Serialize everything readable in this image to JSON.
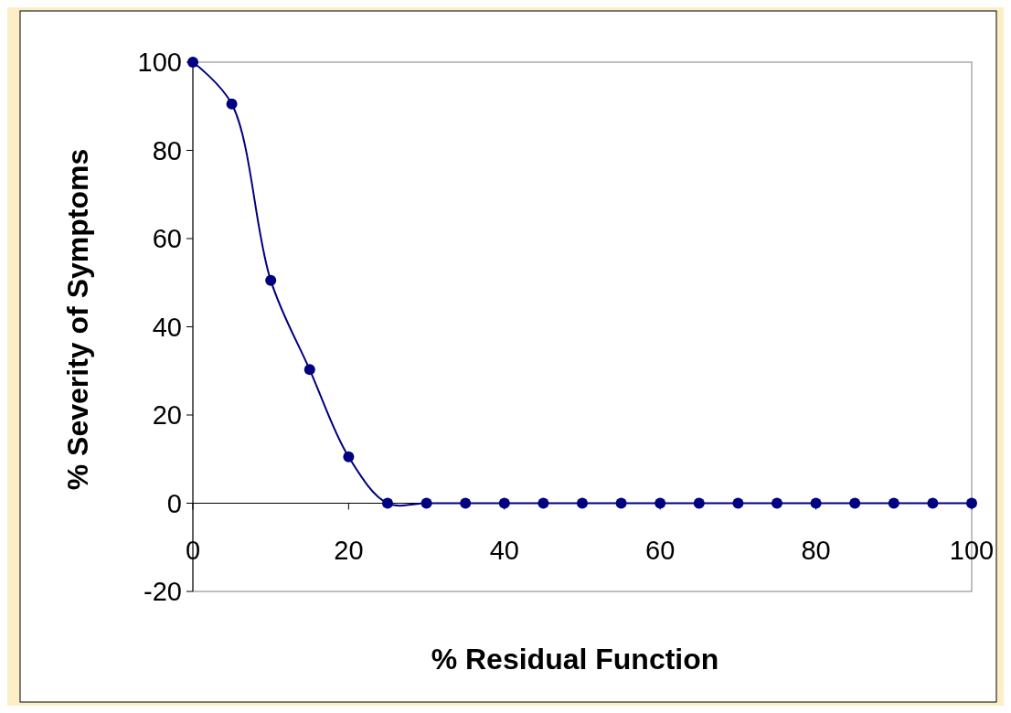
{
  "chart_data": {
    "type": "line",
    "xlabel": "% Residual Function",
    "ylabel": "% Severity of Symptoms",
    "x": [
      0,
      5,
      10,
      15,
      20,
      25,
      30,
      35,
      40,
      45,
      50,
      55,
      60,
      65,
      70,
      75,
      80,
      85,
      90,
      95,
      100
    ],
    "series": [
      {
        "color": "#000080",
        "values": [
          100,
          90.5,
          50.5,
          30.3,
          10.5,
          0,
          0,
          0,
          0,
          0,
          0,
          0,
          0,
          0,
          0,
          0,
          0,
          0,
          0,
          0,
          0
        ]
      }
    ],
    "xlim": [
      0,
      100
    ],
    "xticks": [
      0,
      20,
      40,
      60,
      80,
      100
    ],
    "ylim": [
      -20,
      100
    ],
    "yticks": [
      -20,
      0,
      20,
      40,
      60,
      80,
      100
    ],
    "marker": "circle",
    "line_style": "solid"
  }
}
